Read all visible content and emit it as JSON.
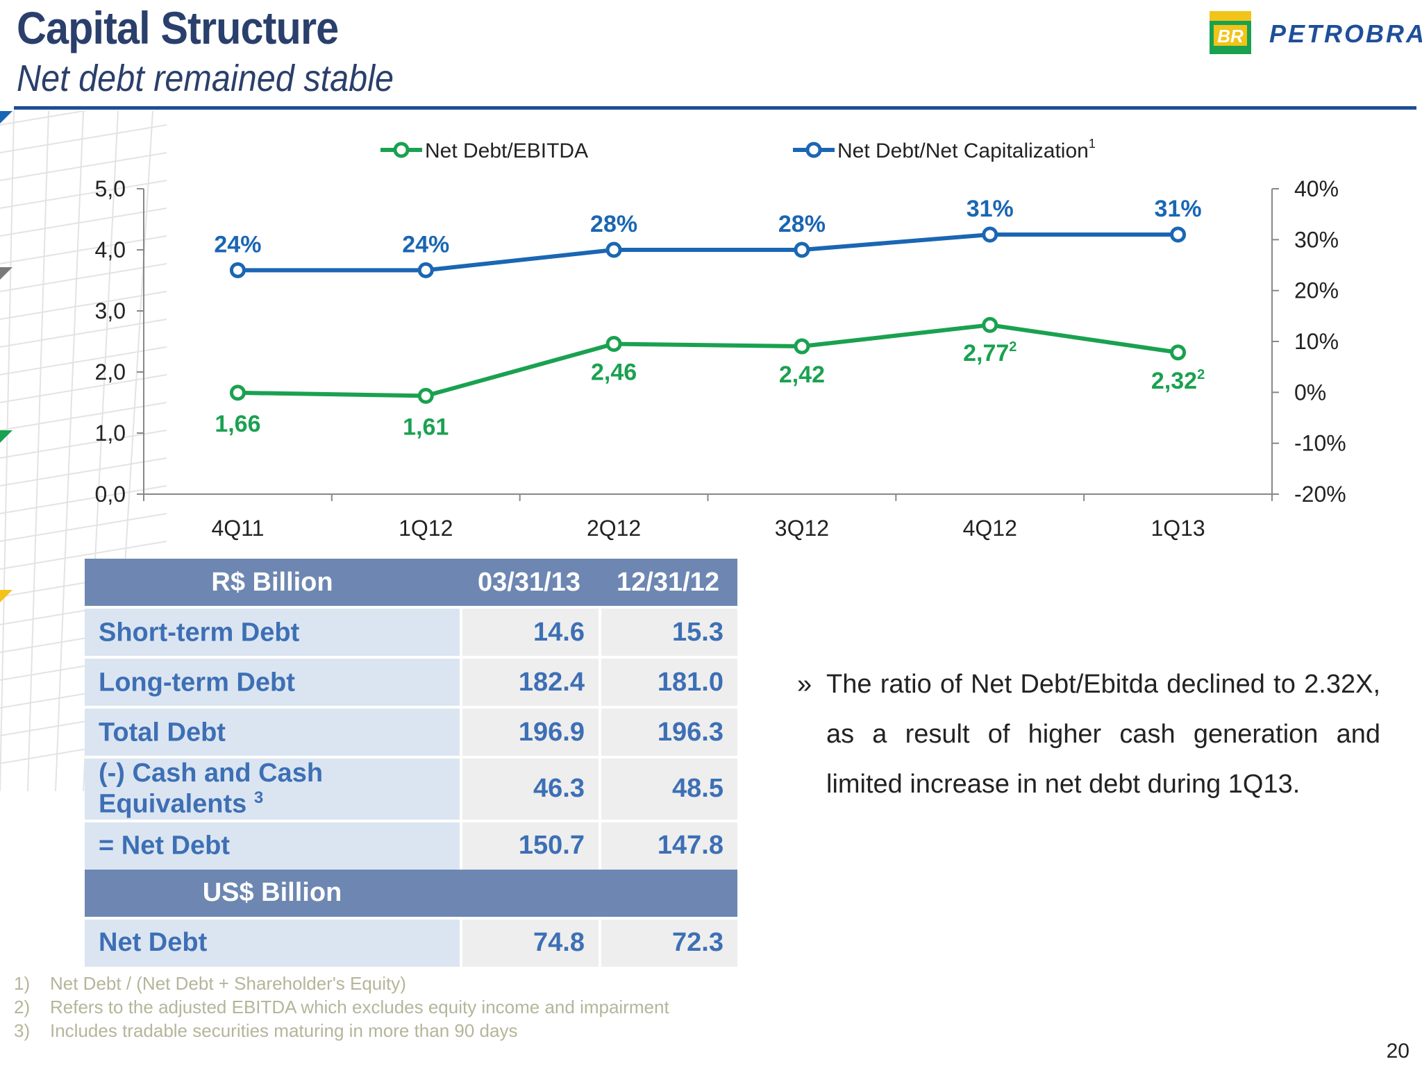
{
  "header": {
    "title": "Capital Structure",
    "subtitle": "Net debt remained stable",
    "logo_text": "PETROBRAS",
    "logo_badge": "BR"
  },
  "chart_data": {
    "type": "line",
    "categories": [
      "4Q11",
      "1Q12",
      "2Q12",
      "3Q12",
      "4Q12",
      "1Q13"
    ],
    "series": [
      {
        "name": "Net Debt/EBITDA",
        "axis": "left",
        "color": "#1aa150",
        "values": [
          1.66,
          1.61,
          2.46,
          2.42,
          2.77,
          2.32
        ],
        "labels": [
          "1,66",
          "1,61",
          "2,46",
          "2,42",
          "2,77",
          "2,32"
        ],
        "label_sup": [
          "",
          "",
          "",
          "",
          "2",
          "2"
        ]
      },
      {
        "name": "Net Debt/Net Capitalization",
        "name_sup": "1",
        "axis": "right",
        "color": "#1a66b3",
        "values": [
          24,
          24,
          28,
          28,
          31,
          31
        ],
        "labels": [
          "24%",
          "24%",
          "28%",
          "28%",
          "31%",
          "31%"
        ]
      }
    ],
    "left_axis": {
      "min": 0,
      "max": 5,
      "ticks": [
        "0,0",
        "1,0",
        "2,0",
        "3,0",
        "4,0",
        "5,0"
      ]
    },
    "right_axis": {
      "min": -20,
      "max": 40,
      "ticks": [
        "-20%",
        "-10%",
        "0%",
        "10%",
        "20%",
        "30%",
        "40%"
      ]
    },
    "legend_position": "top",
    "grid": false
  },
  "table": {
    "header": [
      "R$ Billion",
      "03/31/13",
      "12/31/12"
    ],
    "rows": [
      {
        "label": "Short-term Debt",
        "sup": "",
        "v1": "14.6",
        "v2": "15.3"
      },
      {
        "label": "Long-term Debt",
        "sup": "",
        "v1": "182.4",
        "v2": "181.0"
      },
      {
        "label": "Total Debt",
        "sup": "",
        "v1": "196.9",
        "v2": "196.3"
      },
      {
        "label": "(-) Cash and Cash Equivalents ",
        "sup": "3",
        "v1": "46.3",
        "v2": "48.5"
      },
      {
        "label": "= Net Debt",
        "sup": "",
        "v1": "150.7",
        "v2": "147.8"
      }
    ],
    "usd_header": "US$ Billion",
    "usd_row": {
      "label": "Net Debt",
      "v1": "74.8",
      "v2": "72.3"
    }
  },
  "bullet": {
    "mark": "»",
    "text": "The ratio of Net Debt/Ebitda declined to 2.32X, as a result of higher cash generation and limited increase in net debt during 1Q13."
  },
  "footnotes": [
    {
      "num": "1)",
      "text": "Net Debt / (Net Debt + Shareholder's Equity)"
    },
    {
      "num": "2)",
      "text": "Refers to the adjusted EBITDA which excludes equity income and impairment"
    },
    {
      "num": "3)",
      "text": "Includes tradable securities maturing in more than 90 days"
    }
  ],
  "page_number": "20"
}
